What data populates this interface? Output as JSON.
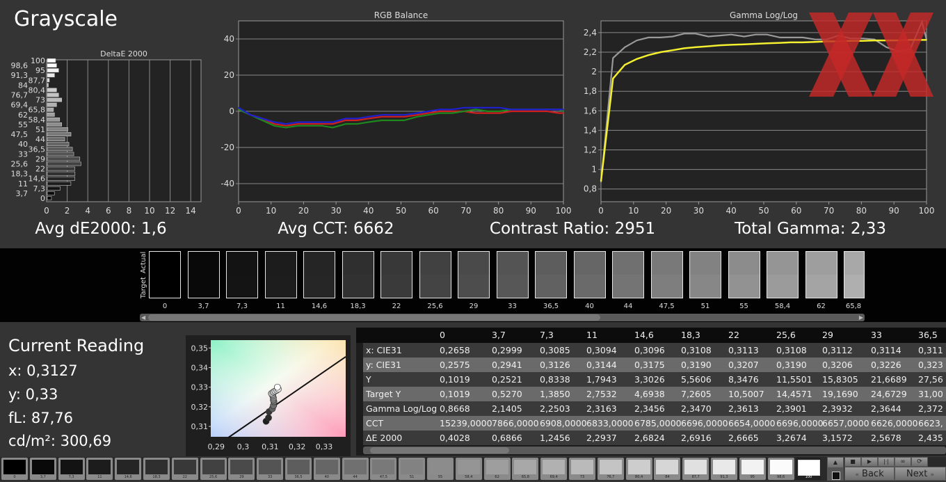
{
  "header": {
    "title": "Grayscale"
  },
  "steps": [
    "0",
    "3,7",
    "7,3",
    "11",
    "14,6",
    "18,3",
    "22",
    "25,6",
    "29",
    "33",
    "36,5",
    "40",
    "44",
    "47,5",
    "51",
    "55",
    "58,4",
    "62",
    "65,8",
    "69,4",
    "73",
    "76,7",
    "80,4",
    "84",
    "87,7",
    "91,3",
    "95",
    "98,6",
    "100"
  ],
  "watermark": {
    "logo_text": "XX",
    "color": "#c62828"
  },
  "stats": {
    "avg_de": "Avg dE2000: 1,6",
    "avg_cct": "Avg CCT: 6662",
    "contrast": "Contrast Ratio: 2951",
    "total_gamma": "Total Gamma: 2,33"
  },
  "chart_data": [
    {
      "type": "bar",
      "orientation": "horizontal",
      "title": "DeltaE 2000",
      "categories": [
        "0",
        "3,7",
        "7,3",
        "11",
        "14,6",
        "18,3",
        "22",
        "25,6",
        "29",
        "33",
        "36,5",
        "40",
        "44",
        "47,5",
        "51",
        "55",
        "58,4",
        "62",
        "65,8",
        "69,4",
        "73",
        "76,7",
        "80,4",
        "84",
        "87,7",
        "91,3",
        "95",
        "98,6",
        "100"
      ],
      "values": [
        0.4,
        0.69,
        1.25,
        2.29,
        2.68,
        2.69,
        2.67,
        3.27,
        3.16,
        2.57,
        2.44,
        2.1,
        1.7,
        2.3,
        2.0,
        1.4,
        1.2,
        0.7,
        0.6,
        0.9,
        1.4,
        1.1,
        0.9,
        0.1,
        0.2,
        0.7,
        1.1,
        0.9,
        0.8
      ],
      "xlim": [
        0,
        15
      ],
      "xticks": [
        "0",
        "2",
        "4",
        "6",
        "8",
        "10",
        "12",
        "14"
      ],
      "grid": true
    },
    {
      "type": "line",
      "title": "RGB Balance",
      "x": [
        0,
        3.7,
        7.3,
        11,
        14.6,
        18.3,
        22,
        25.6,
        29,
        33,
        36.5,
        40,
        44,
        47.5,
        51,
        55,
        58.4,
        62,
        65.8,
        69.4,
        73,
        76.7,
        80.4,
        84,
        87.7,
        91.3,
        95,
        98.6,
        100
      ],
      "series": [
        {
          "color": "#d02020",
          "values": [
            1,
            -2,
            -4,
            -7,
            -8,
            -7,
            -7,
            -7,
            -7,
            -5,
            -5,
            -4,
            -3,
            -3,
            -3,
            -2,
            -1,
            0,
            0,
            0,
            -1,
            -1,
            -1,
            0,
            0,
            0,
            0,
            -1,
            -1
          ]
        },
        {
          "color": "#1e8a1e",
          "values": [
            1,
            -2,
            -5,
            -8,
            -9,
            -8,
            -8,
            -8,
            -9,
            -7,
            -7,
            -6,
            -5,
            -5,
            -5,
            -3,
            -2,
            -1,
            -1,
            0,
            1,
            0,
            0,
            1,
            1,
            1,
            1,
            1,
            0
          ]
        },
        {
          "color": "#2020d0",
          "values": [
            2,
            -2,
            -4,
            -6,
            -7,
            -6,
            -6,
            -6,
            -6,
            -4,
            -4,
            -3,
            -2,
            -2,
            -2,
            -1,
            0,
            1,
            1,
            2,
            2,
            2,
            2,
            1,
            1,
            1,
            1,
            1,
            1
          ]
        }
      ],
      "xlim": [
        0,
        100
      ],
      "ylim": [
        -50,
        50
      ],
      "xticks": [
        "0",
        "10",
        "20",
        "30",
        "40",
        "50",
        "60",
        "70",
        "80",
        "90",
        "100"
      ],
      "yticks": [
        "40",
        "20",
        "0",
        "-20",
        "-40"
      ],
      "grid": true
    },
    {
      "type": "line",
      "title": "Gamma Log/Log",
      "x": [
        0,
        3.7,
        7.3,
        11,
        14.6,
        18.3,
        22,
        25.6,
        29,
        33,
        36.5,
        40,
        44,
        47.5,
        51,
        55,
        58.4,
        62,
        65.8,
        69.4,
        73,
        76.7,
        80.4,
        84,
        87.7,
        91.3,
        95,
        98.6,
        100
      ],
      "series": [
        {
          "color": "#9a9a9a",
          "values": [
            0.87,
            2.14,
            2.25,
            2.32,
            2.35,
            2.35,
            2.36,
            2.39,
            2.39,
            2.36,
            2.37,
            2.38,
            2.36,
            2.38,
            2.38,
            2.35,
            2.35,
            2.35,
            2.33,
            2.33,
            2.37,
            2.34,
            2.34,
            2.33,
            2.25,
            2.21,
            2.23,
            2.51,
            2.33
          ]
        },
        {
          "color": "#f4f030",
          "values": [
            0.88,
            1.93,
            2.07,
            2.13,
            2.17,
            2.2,
            2.22,
            2.24,
            2.25,
            2.26,
            2.27,
            2.275,
            2.28,
            2.285,
            2.29,
            2.295,
            2.3,
            2.3,
            2.305,
            2.31,
            2.31,
            2.315,
            2.315,
            2.32,
            2.32,
            2.32,
            2.325,
            2.325,
            2.325
          ]
        }
      ],
      "xlim": [
        0,
        100
      ],
      "ylim": [
        0.67,
        2.52
      ],
      "xticks": [
        "0",
        "10",
        "20",
        "30",
        "40",
        "50",
        "60",
        "70",
        "80",
        "90",
        "100"
      ],
      "yticks": [
        "2,4",
        "2,2",
        "2",
        "1,8",
        "1,6",
        "1,4",
        "1,2",
        "1",
        "0,8"
      ],
      "grid": true
    },
    {
      "type": "scatter",
      "xlim": [
        0.288,
        0.338
      ],
      "ylim": [
        0.3047,
        0.354
      ],
      "xticks": [
        "0,29",
        "0,3",
        "0,31",
        "0,32",
        "0,33"
      ],
      "yticks": [
        "0,35",
        "0,34",
        "0,33",
        "0,32",
        "0,31"
      ],
      "points": [
        [
          0.3085,
          0.3126
        ],
        [
          0.3094,
          0.3144
        ],
        [
          0.3096,
          0.3175
        ],
        [
          0.3108,
          0.319
        ],
        [
          0.3113,
          0.3207
        ],
        [
          0.3108,
          0.319
        ],
        [
          0.3112,
          0.3206
        ],
        [
          0.3114,
          0.3226
        ],
        [
          0.3112,
          0.3235
        ],
        [
          0.3112,
          0.3245
        ],
        [
          0.311,
          0.3255
        ],
        [
          0.3108,
          0.3262
        ],
        [
          0.3105,
          0.3268
        ],
        [
          0.3112,
          0.3275
        ],
        [
          0.3118,
          0.328
        ],
        [
          0.3125,
          0.3285
        ],
        [
          0.313,
          0.329
        ],
        [
          0.3127,
          0.33
        ]
      ],
      "reference_line": [
        [
          0.2945,
          0.3043
        ],
        [
          0.338,
          0.3455
        ]
      ]
    }
  ],
  "strip": {
    "actual_label": "Actual",
    "target_label": "Target"
  },
  "current_reading": {
    "title": "Current Reading",
    "x": "x: 0,3127",
    "y": "y: 0,33",
    "fl": "fL: 87,76",
    "cdm2": "cd/m²: 300,69"
  },
  "table": {
    "headers": [
      "0",
      "3,7",
      "7,3",
      "11",
      "14,6",
      "18,3",
      "22",
      "25,6",
      "29",
      "33",
      "36,5"
    ],
    "rows": [
      {
        "label": "x: CIE31",
        "values": [
          "0,2658",
          "0,2999",
          "0,3085",
          "0,3094",
          "0,3096",
          "0,3108",
          "0,3113",
          "0,3108",
          "0,3112",
          "0,3114",
          "0,311"
        ]
      },
      {
        "label": "y: CIE31",
        "values": [
          "0,2575",
          "0,2941",
          "0,3126",
          "0,3144",
          "0,3175",
          "0,3190",
          "0,3207",
          "0,3190",
          "0,3206",
          "0,3226",
          "0,323"
        ]
      },
      {
        "label": "Y",
        "values": [
          "0,1019",
          "0,2521",
          "0,8338",
          "1,7943",
          "3,3026",
          "5,5606",
          "8,3476",
          "11,5501",
          "15,8305",
          "21,6689",
          "27,56"
        ]
      },
      {
        "label": "Target Y",
        "values": [
          "0,1019",
          "0,5270",
          "1,3850",
          "2,7532",
          "4,6938",
          "7,2605",
          "10,5007",
          "14,4571",
          "19,1690",
          "24,6729",
          "31,00"
        ]
      },
      {
        "label": "Gamma Log/Log",
        "values": [
          "0,8668",
          "2,1405",
          "2,2503",
          "2,3163",
          "2,3456",
          "2,3470",
          "2,3613",
          "2,3901",
          "2,3932",
          "2,3644",
          "2,372"
        ]
      },
      {
        "label": "CCT",
        "values": [
          "15239,0000",
          "7866,0000",
          "6908,0000",
          "6833,0000",
          "6785,0000",
          "6696,0000",
          "6654,0000",
          "6696,0000",
          "6657,0000",
          "6626,0000",
          "6623,"
        ]
      },
      {
        "label": "ΔE 2000",
        "values": [
          "0,4028",
          "0,6866",
          "1,2456",
          "2,2937",
          "2,6824",
          "2,6916",
          "2,6665",
          "3,2674",
          "3,1572",
          "2,5678",
          "2,435"
        ]
      }
    ]
  },
  "nav": {
    "back": "Back",
    "next": "Next",
    "selected_step": "100"
  }
}
